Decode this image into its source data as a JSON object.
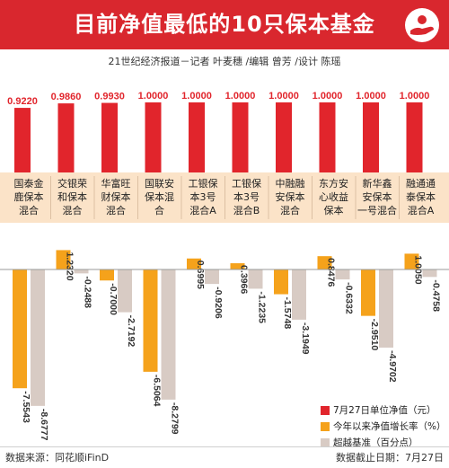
{
  "header": {
    "title": "目前净值最低的10只保本基金",
    "credit": "21世纪经济报道－记者 叶麦穗 /编辑 曾芳 /设计 陈瑶",
    "logo_icon": "hand-coin-icon"
  },
  "footer": {
    "source": "数据来源：同花顺iFinD",
    "deadline": "数据截止日期：7月27日"
  },
  "colors": {
    "header_red": "#d9272e",
    "nav_red": "#e1252c",
    "growth_orange": "#f5a21b",
    "excess_beige": "#d8cbc4",
    "label_band": "#fbe3c8",
    "axis_gray": "#999999"
  },
  "chart_data": {
    "type": "bar",
    "categories": [
      [
        "国泰金",
        "鹿保本",
        "混合"
      ],
      [
        "交银荣",
        "和保本",
        "混合"
      ],
      [
        "华富旺",
        "财保本",
        "混合"
      ],
      [
        "国联安",
        "保本混",
        "合"
      ],
      [
        "工银保",
        "本3号",
        "混合A"
      ],
      [
        "工银保",
        "本3号",
        "混合B"
      ],
      [
        "中融融",
        "安保本",
        "混合"
      ],
      [
        "东方安",
        "心收益",
        "保本"
      ],
      [
        "新华鑫",
        "安保本",
        "一号混合"
      ],
      [
        "融通通",
        "泰保本",
        "混合A"
      ]
    ],
    "series": [
      {
        "name": "7月27日单位净值（元）",
        "key": "nav",
        "values": [
          0.922,
          0.986,
          0.993,
          1.0,
          1.0,
          1.0,
          1.0,
          1.0,
          1.0,
          1.0
        ],
        "labels": [
          "0.9220",
          "0.9860",
          "0.9930",
          "1.0000",
          "1.0000",
          "1.0000",
          "1.0000",
          "1.0000",
          "1.0000",
          "1.0000"
        ]
      },
      {
        "name": "今年以来净值增长率（%）",
        "key": "growth",
        "values": [
          -7.5543,
          1.232,
          -0.7,
          -6.5064,
          0.6995,
          0.3966,
          -1.5748,
          0.8476,
          -2.951,
          1.005
        ],
        "labels": [
          "-7.5543",
          "1.2320",
          "-0.7000",
          "-6.5064",
          "0.6995",
          "0.3966",
          "-1.5748",
          "0.8476",
          "-2.9510",
          "1.0050"
        ]
      },
      {
        "name": "超越基准（百分点）",
        "key": "excess",
        "values": [
          -8.6777,
          -0.2488,
          -2.7192,
          -8.2799,
          -0.9206,
          -1.2235,
          -3.1949,
          -0.6332,
          -4.9702,
          -0.4758
        ],
        "labels": [
          "-8.6777",
          "-0.2488",
          "-2.7192",
          "-8.2799",
          "-0.9206",
          "-1.2235",
          "-3.1949",
          "-0.6332",
          "-4.9702",
          "-0.4758"
        ]
      }
    ],
    "legend_position": "bottom-right",
    "grid": false
  }
}
